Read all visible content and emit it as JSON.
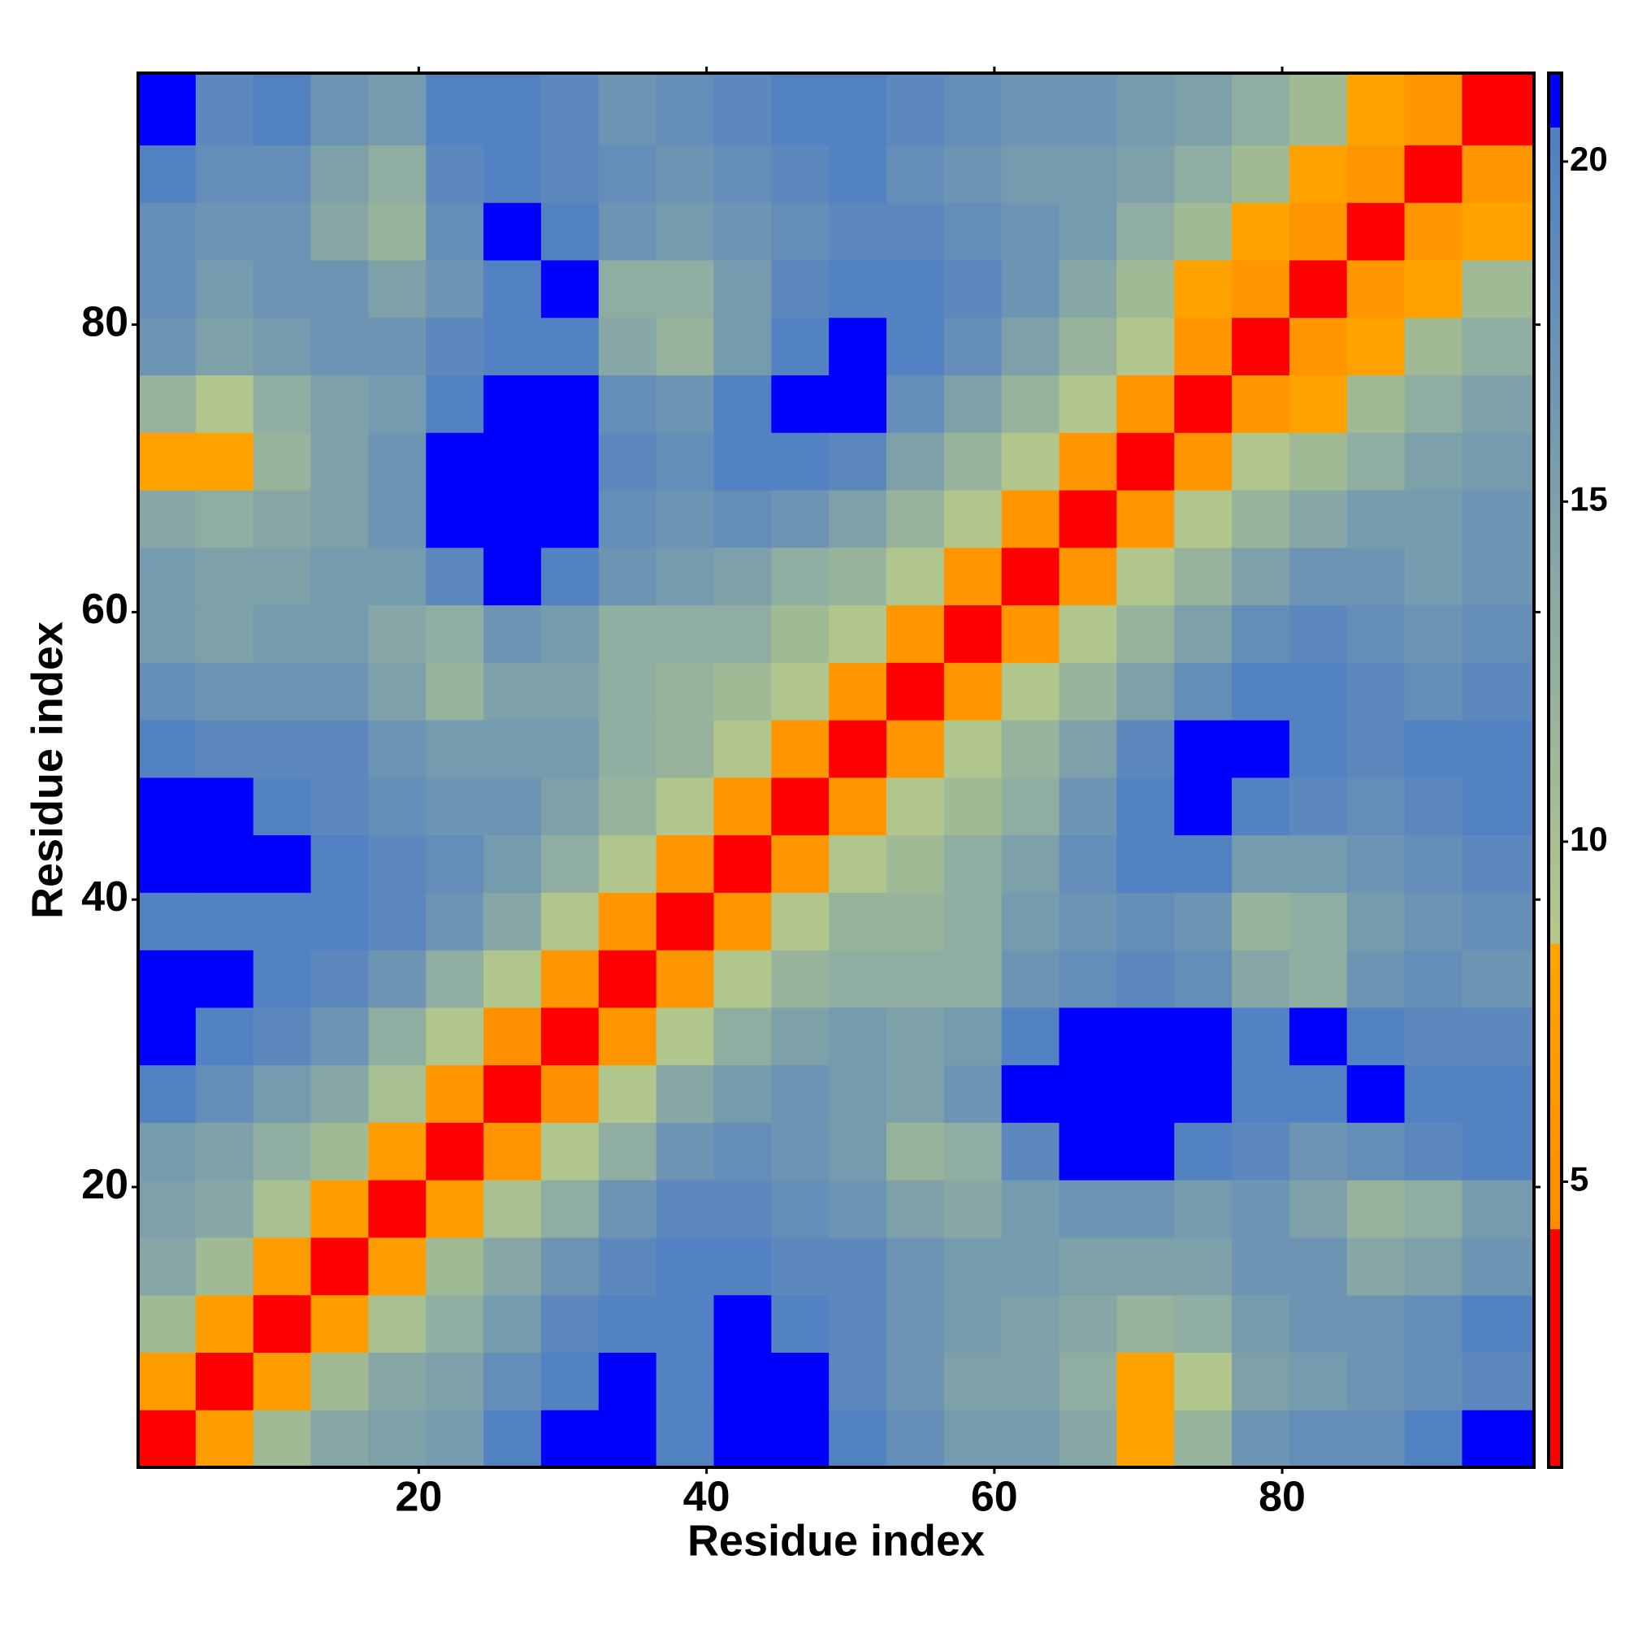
{
  "chart_data": {
    "type": "heatmap",
    "x_label": "Residue index",
    "y_label": "Residue index",
    "xbins": [
      0.5,
      4.5,
      8.5,
      12.5,
      16.5,
      20.5,
      24.5,
      28.5,
      32.5,
      36.5,
      40.5,
      44.5,
      48.5,
      52.5,
      56.5,
      60.5,
      64.5,
      68.5,
      72.5,
      76.5,
      80.5,
      84.5,
      88.5,
      92.5,
      97.5
    ],
    "ybins": [
      0.5,
      4.5,
      8.5,
      12.5,
      16.5,
      20.5,
      24.5,
      28.5,
      32.5,
      36.5,
      40.5,
      44.5,
      48.5,
      52.5,
      56.5,
      60.5,
      64.5,
      68.5,
      72.5,
      76.5,
      80.5,
      84.5,
      88.5,
      92.5,
      97.5
    ],
    "xlim": [
      0.5,
      97.5
    ],
    "ylim": [
      0.5,
      97.5
    ],
    "xticks": [
      20,
      40,
      60,
      80
    ],
    "yticks": [
      20,
      40,
      60,
      80
    ],
    "clim": [
      0.8,
      21.3
    ],
    "cticks": [
      5,
      10,
      15,
      20
    ],
    "colorscale": [
      {
        "value": 0.8,
        "color": "#ff0000"
      },
      {
        "value": 4.3,
        "color": "#ff0000"
      },
      {
        "value": 4.3,
        "color": "#ff8c00"
      },
      {
        "value": 8.5,
        "color": "#ffa500"
      },
      {
        "value": 8.5,
        "color": "#b5c98a"
      },
      {
        "value": 20.5,
        "color": "#4f7fc4"
      },
      {
        "value": 20.5,
        "color": "#0000ff"
      },
      {
        "value": 21.3,
        "color": "#0000ff"
      }
    ],
    "z": [
      [
        3,
        7,
        11,
        14,
        15,
        16,
        20,
        21,
        21,
        20,
        21,
        21,
        20,
        18,
        16,
        16,
        14,
        8,
        12,
        17,
        18,
        18,
        20,
        21
      ],
      [
        7,
        3,
        7,
        11,
        14,
        15,
        18,
        20,
        21,
        20,
        21,
        21,
        19,
        17,
        15,
        15,
        13,
        8,
        9,
        15,
        16,
        17,
        18,
        19
      ],
      [
        11,
        7,
        3,
        7,
        10,
        13,
        16,
        19,
        20,
        20,
        21,
        20,
        19,
        17,
        16,
        15,
        14,
        12,
        13,
        16,
        17,
        17,
        18,
        20
      ],
      [
        14,
        11,
        7,
        3,
        7,
        11,
        14,
        17,
        19,
        20,
        20,
        19,
        19,
        17,
        16,
        16,
        15,
        15,
        15,
        17,
        17,
        14,
        15,
        17
      ],
      [
        15,
        14,
        10,
        7,
        3,
        7,
        10,
        13,
        17,
        19,
        19,
        18,
        17,
        15,
        14,
        16,
        17,
        17,
        16,
        17,
        15,
        12,
        13,
        16
      ],
      [
        16,
        15,
        13,
        11,
        7,
        3,
        6,
        9,
        13,
        17,
        18,
        17,
        16,
        12,
        13,
        19,
        21,
        21,
        20,
        19,
        17,
        18,
        19,
        20
      ],
      [
        20,
        18,
        16,
        14,
        10,
        6,
        3,
        5,
        9,
        14,
        16,
        17,
        16,
        15,
        17,
        21,
        21,
        21,
        21,
        20,
        20,
        21,
        20,
        20
      ],
      [
        21,
        20,
        19,
        17,
        13,
        9,
        5,
        3,
        6,
        9,
        13,
        15,
        16,
        15,
        16,
        20,
        21,
        21,
        21,
        20,
        21,
        20,
        19,
        19
      ],
      [
        21,
        21,
        20,
        19,
        17,
        13,
        9,
        6,
        3,
        6,
        9,
        12,
        13,
        13,
        13,
        17,
        18,
        19,
        18,
        14,
        13,
        17,
        18,
        17
      ],
      [
        20,
        20,
        20,
        20,
        19,
        17,
        14,
        9,
        6,
        3,
        6,
        9,
        12,
        12,
        13,
        16,
        17,
        18,
        17,
        12,
        13,
        16,
        17,
        18
      ],
      [
        21,
        21,
        21,
        20,
        19,
        18,
        16,
        13,
        9,
        6,
        3,
        6,
        9,
        11,
        13,
        15,
        18,
        20,
        20,
        16,
        16,
        17,
        18,
        19
      ],
      [
        21,
        21,
        20,
        19,
        18,
        17,
        17,
        15,
        12,
        9,
        6,
        3,
        6,
        9,
        11,
        13,
        17,
        20,
        21,
        20,
        19,
        18,
        19,
        20
      ],
      [
        20,
        19,
        19,
        19,
        17,
        16,
        16,
        16,
        13,
        12,
        9,
        6,
        3,
        6,
        9,
        12,
        15,
        19,
        21,
        21,
        20,
        19,
        20,
        20
      ],
      [
        18,
        17,
        17,
        17,
        15,
        12,
        15,
        15,
        13,
        12,
        11,
        9,
        6,
        3,
        6,
        9,
        12,
        15,
        18,
        20,
        20,
        19,
        18,
        19
      ],
      [
        16,
        15,
        16,
        16,
        14,
        13,
        17,
        16,
        13,
        13,
        13,
        11,
        9,
        6,
        3,
        6,
        9,
        12,
        15,
        18,
        19,
        18,
        17,
        18
      ],
      [
        16,
        15,
        15,
        16,
        16,
        19,
        21,
        20,
        17,
        16,
        15,
        13,
        12,
        9,
        6,
        3,
        6,
        9,
        12,
        15,
        17,
        17,
        16,
        17
      ],
      [
        14,
        13,
        14,
        15,
        17,
        21,
        21,
        21,
        18,
        17,
        18,
        17,
        15,
        12,
        9,
        6,
        3,
        6,
        9,
        12,
        14,
        16,
        16,
        17
      ],
      [
        8,
        8,
        12,
        15,
        17,
        21,
        21,
        21,
        19,
        18,
        20,
        20,
        19,
        15,
        12,
        9,
        6,
        3,
        6,
        9,
        11,
        13,
        15,
        16
      ],
      [
        12,
        9,
        13,
        15,
        16,
        20,
        21,
        21,
        18,
        17,
        20,
        21,
        21,
        18,
        15,
        12,
        9,
        6,
        3,
        6,
        8,
        11,
        13,
        15
      ],
      [
        17,
        15,
        16,
        17,
        17,
        19,
        20,
        20,
        14,
        12,
        16,
        20,
        21,
        20,
        18,
        15,
        12,
        9,
        6,
        3,
        6,
        8,
        11,
        13
      ],
      [
        18,
        16,
        17,
        17,
        15,
        17,
        20,
        21,
        13,
        13,
        16,
        19,
        20,
        20,
        19,
        17,
        14,
        11,
        8,
        6,
        3,
        6,
        8,
        11
      ],
      [
        18,
        17,
        17,
        14,
        12,
        18,
        21,
        20,
        17,
        16,
        17,
        18,
        19,
        19,
        18,
        17,
        16,
        13,
        11,
        8,
        6,
        3,
        6,
        8
      ],
      [
        20,
        18,
        18,
        15,
        13,
        19,
        20,
        19,
        18,
        17,
        18,
        19,
        20,
        18,
        17,
        16,
        16,
        15,
        13,
        11,
        8,
        6,
        3,
        6
      ],
      [
        21,
        19,
        20,
        17,
        16,
        20,
        20,
        19,
        17,
        18,
        19,
        20,
        20,
        19,
        18,
        17,
        17,
        16,
        15,
        13,
        11,
        8,
        6,
        3
      ]
    ]
  }
}
